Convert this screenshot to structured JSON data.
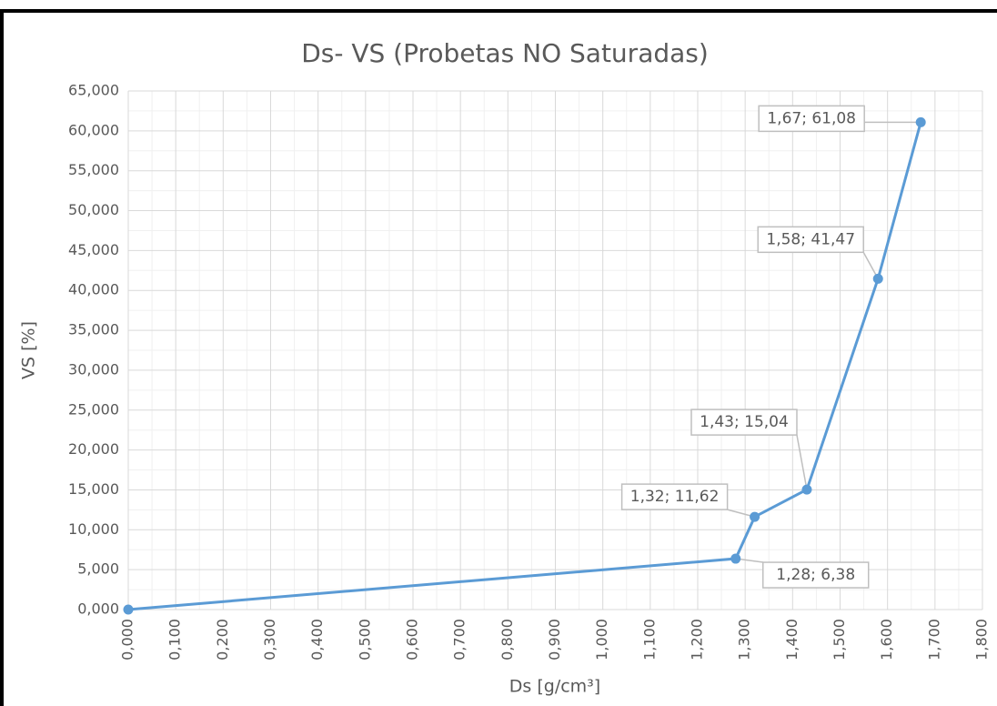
{
  "chart_data": {
    "type": "line",
    "title": "Ds- VS (Probetas NO Saturadas)",
    "x_label": "Ds [g/cm³]",
    "y_label": "VS [%]",
    "x": [
      0,
      1.28,
      1.32,
      1.43,
      1.58,
      1.67
    ],
    "series": [
      {
        "color": "#5b9bd5",
        "values": [
          0,
          6.38,
          11.62,
          15.04,
          41.47,
          61.08
        ],
        "value_labels": [
          null,
          "1,28; 6,38",
          "1,32; 11,62",
          "1,43; 15,04",
          "1,58; 41,47",
          "1,67; 61,08"
        ]
      }
    ],
    "xlim": [
      0,
      1.8
    ],
    "xticks": [
      {
        "value": 0,
        "label": "0,000"
      },
      {
        "value": 0.1,
        "label": "0,100"
      },
      {
        "value": 0.2,
        "label": "0,200"
      },
      {
        "value": 0.3,
        "label": "0,300"
      },
      {
        "value": 0.4,
        "label": "0,400"
      },
      {
        "value": 0.5,
        "label": "0,500"
      },
      {
        "value": 0.6,
        "label": "0,600"
      },
      {
        "value": 0.7,
        "label": "0,700"
      },
      {
        "value": 0.8,
        "label": "0,800"
      },
      {
        "value": 0.9,
        "label": "0,900"
      },
      {
        "value": 1.0,
        "label": "1,000"
      },
      {
        "value": 1.1,
        "label": "1,100"
      },
      {
        "value": 1.2,
        "label": "1,200"
      },
      {
        "value": 1.3,
        "label": "1,300"
      },
      {
        "value": 1.4,
        "label": "1,400"
      },
      {
        "value": 1.5,
        "label": "1,500"
      },
      {
        "value": 1.6,
        "label": "1,600"
      },
      {
        "value": 1.7,
        "label": "1,700"
      },
      {
        "value": 1.8,
        "label": "1,800"
      }
    ],
    "ylim": [
      0,
      65
    ],
    "yticks": [
      {
        "value": 0,
        "label": "0,000"
      },
      {
        "value": 5,
        "label": "5,000"
      },
      {
        "value": 10,
        "label": "10,000"
      },
      {
        "value": 15,
        "label": "15,000"
      },
      {
        "value": 20,
        "label": "20,000"
      },
      {
        "value": 25,
        "label": "25,000"
      },
      {
        "value": 30,
        "label": "30,000"
      },
      {
        "value": 35,
        "label": "35,000"
      },
      {
        "value": 40,
        "label": "40,000"
      },
      {
        "value": 45,
        "label": "45,000"
      },
      {
        "value": 50,
        "label": "50,000"
      },
      {
        "value": 55,
        "label": "55,000"
      },
      {
        "value": 60,
        "label": "60,000"
      },
      {
        "value": 65,
        "label": "65,000"
      }
    ],
    "grid": true,
    "minor_grid": true
  }
}
